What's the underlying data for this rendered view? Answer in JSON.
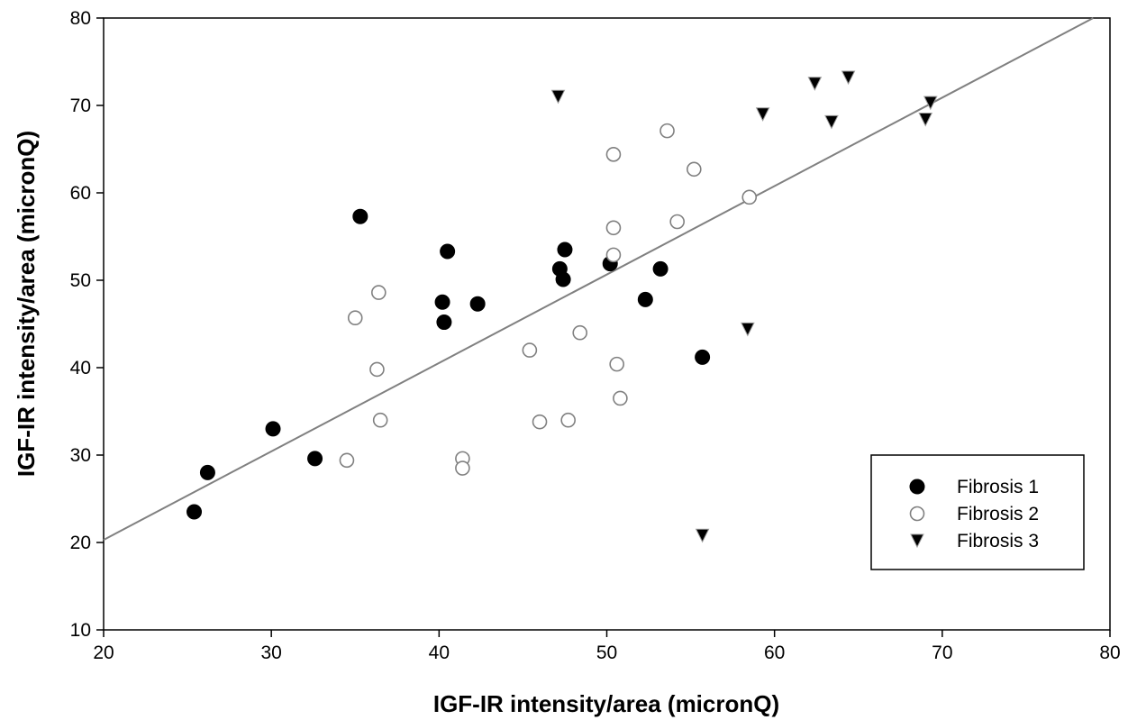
{
  "chart_data": {
    "type": "scatter",
    "title": "",
    "xlabel": "IGF-IR intensity/area (micronQ)",
    "ylabel": "IGF-IR intensity/area (micronQ)",
    "xlim": [
      20,
      80
    ],
    "ylim": [
      10,
      80
    ],
    "xticks": [
      20,
      30,
      40,
      50,
      60,
      70,
      80
    ],
    "yticks": [
      10,
      20,
      30,
      40,
      50,
      60,
      70,
      80
    ],
    "grid": false,
    "legend_position": "bottom-right",
    "series": [
      {
        "name": "Fibrosis 1",
        "marker": "filled-circle",
        "color": "#000000",
        "points": [
          [
            25.4,
            23.5
          ],
          [
            26.2,
            28.0
          ],
          [
            30.1,
            33.0
          ],
          [
            32.6,
            29.6
          ],
          [
            35.3,
            57.3
          ],
          [
            40.2,
            47.5
          ],
          [
            40.3,
            45.2
          ],
          [
            40.5,
            53.3
          ],
          [
            42.3,
            47.3
          ],
          [
            47.2,
            51.3
          ],
          [
            47.4,
            50.1
          ],
          [
            47.5,
            53.5
          ],
          [
            50.2,
            51.9
          ],
          [
            52.3,
            47.8
          ],
          [
            53.2,
            51.3
          ],
          [
            55.7,
            41.2
          ]
        ]
      },
      {
        "name": "Fibrosis 2",
        "marker": "open-circle",
        "color": "#808080",
        "points": [
          [
            34.5,
            29.4
          ],
          [
            35.0,
            45.7
          ],
          [
            36.3,
            39.8
          ],
          [
            36.4,
            48.6
          ],
          [
            36.5,
            34.0
          ],
          [
            41.4,
            29.6
          ],
          [
            41.4,
            28.5
          ],
          [
            45.4,
            42.0
          ],
          [
            46.0,
            33.8
          ],
          [
            47.7,
            34.0
          ],
          [
            48.4,
            44.0
          ],
          [
            50.4,
            64.4
          ],
          [
            50.4,
            56.0
          ],
          [
            50.4,
            52.9
          ],
          [
            50.6,
            40.4
          ],
          [
            50.8,
            36.5
          ],
          [
            53.6,
            67.1
          ],
          [
            54.2,
            56.7
          ],
          [
            55.2,
            62.7
          ],
          [
            58.5,
            59.5
          ]
        ]
      },
      {
        "name": "Fibrosis 3",
        "marker": "filled-triangle-down",
        "color": "#000000",
        "points": [
          [
            47.1,
            71.0
          ],
          [
            55.7,
            20.8
          ],
          [
            58.4,
            44.4
          ],
          [
            59.3,
            69.0
          ],
          [
            62.4,
            72.5
          ],
          [
            63.4,
            68.1
          ],
          [
            64.4,
            73.2
          ],
          [
            69.0,
            68.4
          ],
          [
            69.3,
            70.3
          ]
        ]
      }
    ],
    "regression_line": {
      "color": "#808080",
      "from": [
        20,
        20.3
      ],
      "to": [
        79,
        80
      ]
    }
  }
}
